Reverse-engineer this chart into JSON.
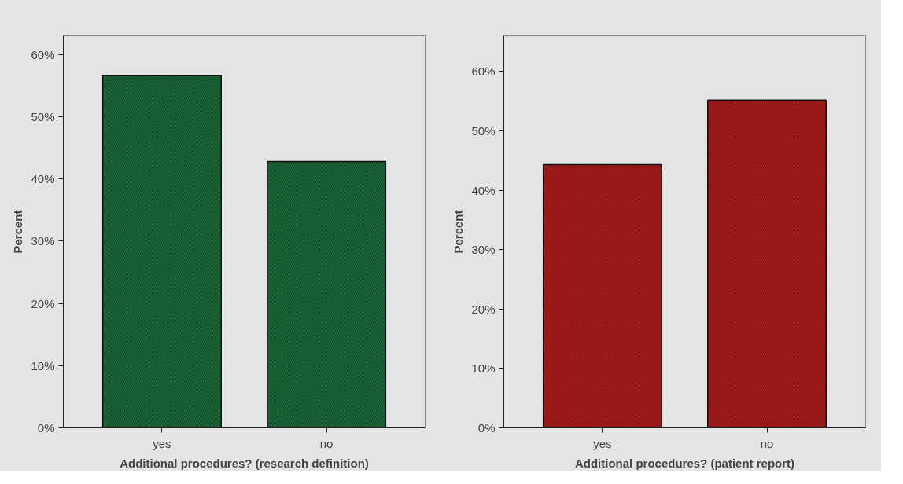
{
  "chart_data": [
    {
      "type": "bar",
      "categories": [
        "yes",
        "no"
      ],
      "values": [
        56.6,
        42.8
      ],
      "color": "#1e6b3c",
      "xlabel": "Additional procedures? (research definition)",
      "ylabel": "Percent",
      "ylim": [
        0,
        63
      ],
      "yticks": [
        {
          "value": 0,
          "label": "0%"
        },
        {
          "value": 10,
          "label": "10%"
        },
        {
          "value": 20,
          "label": "20%"
        },
        {
          "value": 30,
          "label": "30%"
        },
        {
          "value": 40,
          "label": "40%"
        },
        {
          "value": 50,
          "label": "50%"
        },
        {
          "value": 60,
          "label": "60%"
        }
      ],
      "grid": false
    },
    {
      "type": "bar",
      "categories": [
        "yes",
        "no"
      ],
      "values": [
        44.3,
        55.2
      ],
      "color": "#b01c1c",
      "xlabel": "Additional procedures? (patient report)",
      "ylabel": "Percent",
      "ylim": [
        0,
        66
      ],
      "yticks": [
        {
          "value": 0,
          "label": "0%"
        },
        {
          "value": 10,
          "label": "10%"
        },
        {
          "value": 20,
          "label": "20%"
        },
        {
          "value": 30,
          "label": "30%"
        },
        {
          "value": 40,
          "label": "40%"
        },
        {
          "value": 50,
          "label": "50%"
        },
        {
          "value": 60,
          "label": "60%"
        }
      ],
      "grid": false
    }
  ]
}
